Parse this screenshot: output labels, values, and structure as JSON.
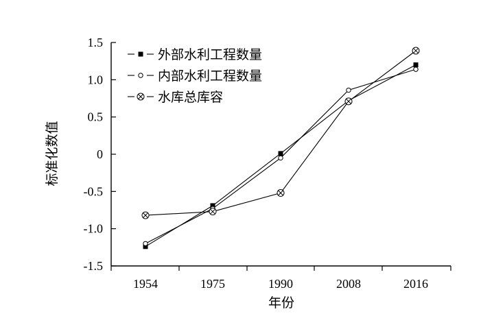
{
  "chart_data": {
    "type": "line",
    "xlabel": "年份",
    "ylabel": "标准化数值",
    "categories": [
      "1954",
      "1975",
      "1990",
      "2008",
      "2016"
    ],
    "ylim": [
      -1.5,
      1.5
    ],
    "yticks": [
      "1.5",
      "1.0",
      "0.5",
      "0",
      "-0.5",
      "-1.0",
      "-1.5"
    ],
    "ytick_values": [
      1.5,
      1.0,
      0.5,
      0,
      -0.5,
      -1.0,
      -1.5
    ],
    "grid": false,
    "legend_position": "top-left",
    "series": [
      {
        "name": "外部水利工程数量",
        "marker": "filled-square",
        "values": [
          -1.24,
          -0.69,
          0.01,
          0.72,
          1.2
        ]
      },
      {
        "name": "内部水利工程数量",
        "marker": "open-circle",
        "values": [
          -1.2,
          -0.73,
          -0.05,
          0.86,
          1.14
        ]
      },
      {
        "name": "水库总库容",
        "marker": "circle-x",
        "values": [
          -0.82,
          -0.77,
          -0.52,
          0.71,
          1.39
        ]
      }
    ],
    "colors": {
      "line": "#000000",
      "axis": "#000000"
    }
  }
}
